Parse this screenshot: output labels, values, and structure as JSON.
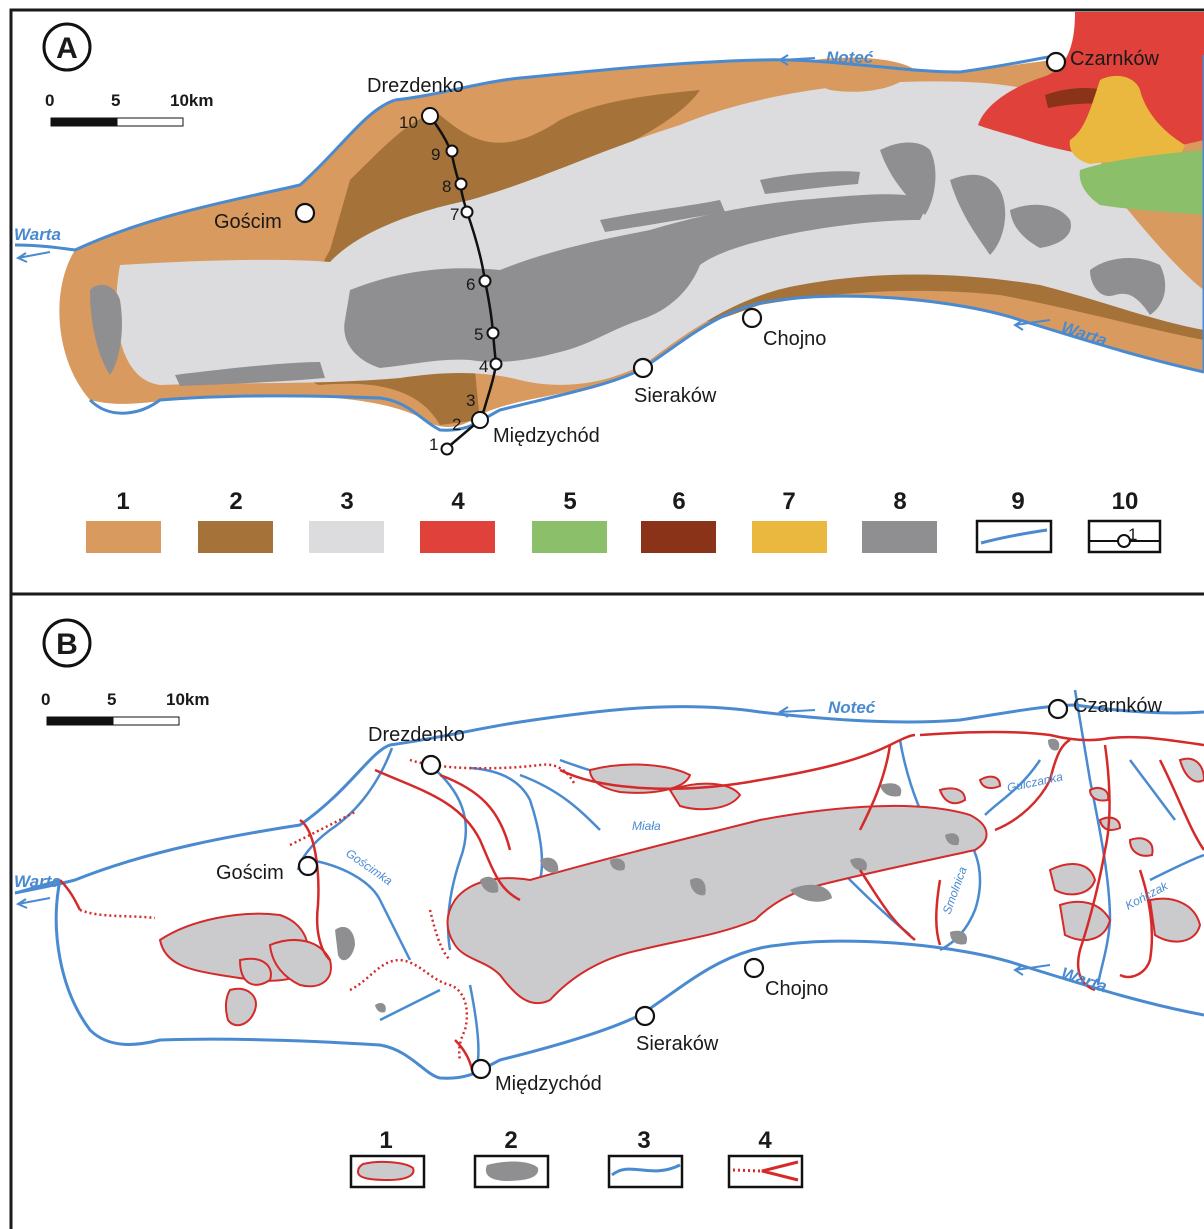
{
  "panel_a": {
    "label": "A",
    "scale": {
      "t0": "0",
      "t1": "5",
      "t2": "10km"
    },
    "towns": {
      "drezdenko": "Drezdenko",
      "goscim": "Gościm",
      "miedzychod": "Międzychód",
      "sierakow": "Sieraków",
      "chojno": "Chojno",
      "czarnkow": "Czarnków"
    },
    "rivers": {
      "notec": "Noteć",
      "warta_w": "Warta",
      "warta_e": "Warta"
    },
    "profile_points": [
      "1",
      "2",
      "3",
      "4",
      "5",
      "6",
      "7",
      "8",
      "9",
      "10"
    ],
    "legend": [
      "1",
      "2",
      "3",
      "4",
      "5",
      "6",
      "7",
      "8",
      "9",
      "10"
    ],
    "legend_sample": "1",
    "colors": {
      "unit1": "#d89a5e",
      "unit2": "#a5733a",
      "unit3": "#dcdcdf",
      "unit4": "#e0413a",
      "unit5": "#8bbf6a",
      "unit6": "#8a3318",
      "unit7": "#eab83e",
      "unit8": "#8f8f91",
      "river": "#4a8ad0"
    }
  },
  "panel_b": {
    "label": "B",
    "scale": {
      "t0": "0",
      "t1": "5",
      "t2": "10km"
    },
    "towns": {
      "drezdenko": "Drezdenko",
      "goscim": "Gościm",
      "miedzychod": "Międzychód",
      "sierakow": "Sieraków",
      "chojno": "Chojno",
      "czarnkow": "Czarnków"
    },
    "rivers": {
      "notec": "Noteć",
      "warta_w": "Warta",
      "warta_e": "Warta",
      "miala": "Miała",
      "goscimka": "Gościmka",
      "gulczanka": "Gulczanka",
      "smolnica": "Smolnica",
      "konczak": "Kończak"
    },
    "legend": [
      "1",
      "2",
      "3",
      "4"
    ],
    "colors": {
      "dune_fill": "#cbcbcd",
      "dune_dark": "#8f8f91",
      "boundary": "#d42a2a",
      "river": "#4a8ad0"
    }
  }
}
